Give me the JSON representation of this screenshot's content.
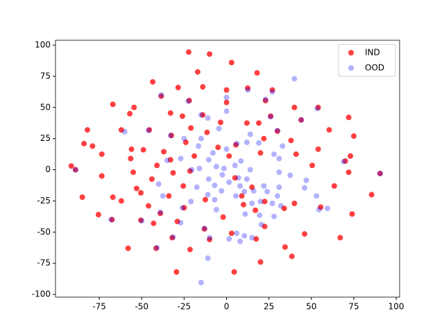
{
  "chart_data": {
    "type": "scatter",
    "xlim": [
      -100.8,
      102
    ],
    "ylim": [
      -102.2,
      103.9
    ],
    "xticks": [
      -75,
      -50,
      -25,
      0,
      25,
      50,
      75,
      100
    ],
    "yticks": [
      -100,
      -75,
      -50,
      -25,
      0,
      25,
      50,
      75,
      100
    ],
    "legend": "upper right",
    "series": [
      {
        "name": "IND",
        "color": "#ff0000",
        "alpha": 0.75,
        "x": [
          -22.3,
          -10,
          3,
          -17,
          18,
          -43.5,
          -14,
          -28.5,
          12.5,
          27,
          0,
          -38.5,
          -22,
          23,
          -67,
          0,
          -54.5,
          40,
          54,
          -33,
          -57,
          26,
          -26,
          -14,
          72,
          44,
          -3.5,
          12,
          19,
          60.5,
          -82,
          -62,
          -45.5,
          -11.5,
          30,
          -32.5,
          75,
          -21,
          -24,
          38,
          22,
          -84,
          -79,
          5.5,
          -5,
          -56,
          -49,
          -37,
          20,
          54,
          -73.5,
          -19,
          1.5,
          41,
          73,
          -56.5,
          -33,
          70,
          -41,
          50.5,
          -91.5,
          -89,
          -21.5,
          -55,
          -31.5,
          72,
          90.5,
          -73.5,
          5,
          -44,
          -25.5,
          -53,
          63.5,
          15,
          -50.5,
          85.5,
          -34,
          -85,
          -67,
          -12.5,
          22.5,
          -62,
          9,
          40,
          10,
          -46,
          -25,
          34,
          55.5,
          17,
          -39,
          -75.5,
          74,
          -2,
          -50.5,
          -67.5,
          -29,
          -43,
          22.5,
          -13,
          3,
          46,
          -10,
          -32,
          17.5,
          67,
          -58,
          -21.5,
          -41.5,
          34.5,
          38.5,
          20,
          -29.5,
          4.5
        ],
        "values": [
          94.4,
          92.8,
          86,
          78.5,
          77.7,
          70.5,
          66.5,
          66,
          65.5,
          64,
          64,
          59,
          55.5,
          55.5,
          52.5,
          54,
          50,
          50,
          50,
          45.5,
          45,
          43,
          43,
          44,
          42,
          40,
          38,
          37.5,
          37.5,
          32,
          32,
          32,
          32,
          30,
          31,
          27.5,
          27,
          33.5,
          22,
          23.5,
          25,
          21,
          19,
          20,
          18,
          16.5,
          16,
          14.5,
          13.5,
          16.5,
          12.5,
          11,
          11,
          12.5,
          11,
          9,
          8,
          7,
          3.5,
          3.5,
          3,
          0,
          -1,
          -2,
          -2.5,
          -2,
          -3,
          -5,
          -6.5,
          -7.5,
          -13,
          -15,
          -13,
          -14,
          -18.5,
          -20,
          -21,
          -22,
          -22,
          -24,
          -25.5,
          -25,
          -21,
          -27,
          -28,
          -29,
          -30.5,
          -31,
          -30,
          -32.5,
          -35,
          -36,
          -35.5,
          -38,
          -40.5,
          -40,
          -41.5,
          -43,
          -45.5,
          -47.5,
          -51,
          -51.5,
          -56,
          -54.5,
          -55.5,
          -54.5,
          -63,
          -64,
          -63,
          -62,
          -69.5,
          -74,
          -82,
          -82
        ]
      },
      {
        "name": "OOD",
        "color": "#0000ff",
        "alpha": 0.3,
        "x": [
          40,
          -38.5,
          23,
          53.5,
          0,
          -15,
          44,
          -11,
          26,
          -33,
          14,
          30,
          -4.5,
          -25,
          -15,
          6,
          12,
          33,
          -16.5,
          19,
          0,
          -8,
          28,
          -27,
          -10.5,
          8.5,
          31,
          -1.5,
          -16,
          -6,
          5,
          14,
          -20.5,
          31,
          37.5,
          47,
          -2.5,
          7,
          12,
          -10.5,
          1.5,
          -7,
          8,
          22,
          31,
          46,
          -40,
          -17.5,
          -3,
          10.5,
          16,
          24,
          30,
          53,
          -11,
          5.5,
          20,
          27,
          15,
          -7,
          -21,
          -37.5,
          32,
          54.5,
          -6,
          11,
          19.5,
          -26,
          -39,
          28,
          20.5,
          -13,
          6,
          10.5,
          15,
          8,
          -10,
          1.5,
          -31.5,
          -41,
          -11,
          -15,
          -68,
          -50,
          -27,
          59.5,
          90.5,
          69,
          -35,
          -60,
          -46,
          -89,
          0,
          12.5,
          -22.5,
          27
        ],
        "values": [
          73,
          60,
          56.5,
          49,
          47,
          44,
          40,
          41.5,
          42.5,
          27.5,
          28.5,
          31.5,
          33,
          25,
          25,
          21,
          22,
          19,
          19,
          21.5,
          16.5,
          13.5,
          12.5,
          9,
          8,
          7,
          9,
          1,
          1,
          2.5,
          3.5,
          0,
          0,
          -2,
          -4.5,
          -8.5,
          -4,
          -6.5,
          -7.5,
          -7.5,
          -10,
          -12.5,
          -13,
          -13,
          -14,
          -14.5,
          -11.5,
          -14,
          -17,
          -17.5,
          -17,
          -17.5,
          -21,
          -21,
          -20,
          -21,
          -25.5,
          -27,
          -27,
          -24,
          -25.5,
          -21,
          -29,
          -32,
          -32,
          -35.5,
          -36.5,
          -30.5,
          -34,
          -37.5,
          -44,
          -47,
          -51,
          -53,
          -54.5,
          -57.5,
          -54.5,
          -55.5,
          -54,
          -62.5,
          -71,
          -90.5,
          -40,
          -41,
          -42.5,
          -31,
          -3,
          6.5,
          7.5,
          30.5,
          31.5,
          0,
          58,
          64,
          55,
          62.5
        ]
      }
    ]
  }
}
